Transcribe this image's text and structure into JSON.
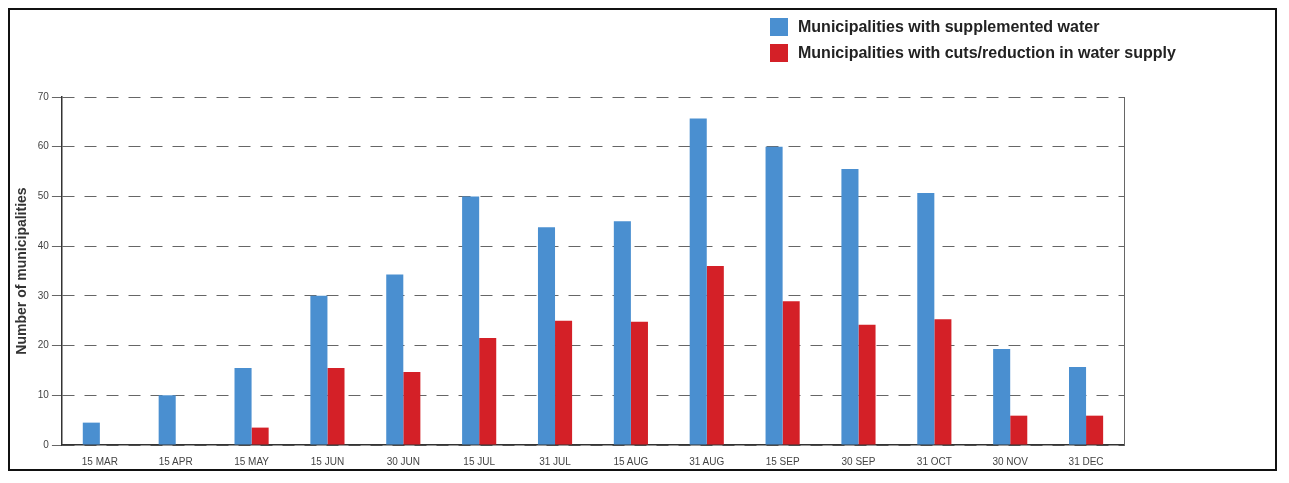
{
  "chart_data": {
    "type": "bar",
    "ylabel": "Number of municipalities",
    "categories": [
      "15 MAR",
      "15 APR",
      "15 MAY",
      "15 JUN",
      "30 JUN",
      "15 JUL",
      "31 JUL",
      "15 AUG",
      "31 AUG",
      "15 SEP",
      "30 SEP",
      "31 OCT",
      "30 NOV",
      "31 DEC"
    ],
    "series": [
      {
        "name": "Municipalities with supplemented water",
        "color": "#4a8fd0",
        "values": [
          4.5,
          10,
          15.5,
          30,
          34.3,
          50,
          43.8,
          45,
          65.7,
          60,
          55.5,
          50.7,
          19.3,
          15.7
        ]
      },
      {
        "name": "Municipalities with cuts/reduction in water supply",
        "color": "#d42027",
        "values": [
          0,
          0,
          3.5,
          15.5,
          14.7,
          21.5,
          25,
          24.8,
          36,
          28.9,
          24.2,
          25.3,
          5.9,
          5.9
        ]
      }
    ],
    "ylim": [
      0,
      70
    ],
    "yticks": [
      0,
      10,
      20,
      30,
      40,
      50,
      60,
      70
    ],
    "grid": "y",
    "legend": "top right"
  }
}
